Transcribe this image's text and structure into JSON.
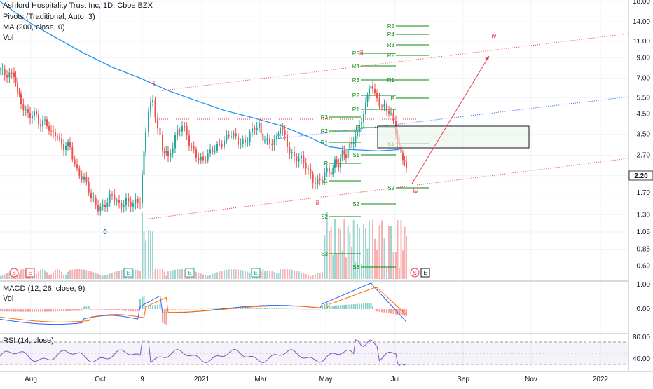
{
  "header": {
    "title": "Ashford Hospitality Trust Inc, 1D, Cboe BZX",
    "indicators": [
      "Pivots (Traditional, Auto, 3)",
      "MA (200, close, 0)",
      "Vol"
    ]
  },
  "macd_label": "MACD (12, 26, close, 9)",
  "macd_vol_label": "Vol",
  "rsi_label": "RSI (14, close)",
  "current_price": "2.20",
  "price_axis": [
    "18.00",
    "14.00",
    "11.00",
    "9.00",
    "7.00",
    "5.50",
    "4.50",
    "3.50",
    "2.70",
    "2.10",
    "1.70",
    "1.30",
    "1.05",
    "0.85",
    "0.69"
  ],
  "macd_axis": [
    "1.00",
    "0.00",
    "-1.00"
  ],
  "rsi_axis": [
    "80.00",
    "40.00"
  ],
  "time_axis": [
    "Aug",
    "Oct",
    "9",
    "2021",
    "Mar",
    "May",
    "Jul",
    "Sep",
    "Nov",
    "2022"
  ],
  "wave_labels": [
    "0",
    "i",
    "ii",
    "iii",
    "iv",
    "iv"
  ],
  "pivot_labels_1": [
    "R5",
    "R4",
    "R3",
    "R2",
    "R1",
    "P",
    "S1",
    "S2",
    "S3"
  ],
  "pivot_labels_2": [
    "R5",
    "R4",
    "R3",
    "R2",
    "R1",
    "P",
    "S1",
    "S2",
    "S3"
  ],
  "pivot_labels_3": [
    "R5",
    "R4",
    "R3",
    "R2",
    "R1",
    "P",
    "S1",
    "S2"
  ],
  "event_markers": [
    "S",
    "E",
    "E",
    "E",
    "E",
    "S",
    "E"
  ],
  "colors": {
    "up": "#26a69a",
    "down": "#ef5350",
    "ma": "#2196f3",
    "pivot": "#0b8a0b",
    "macd": "#2962ff",
    "signal": "#ff6d00",
    "rsi": "#7e57c2",
    "channel": "#f23645"
  },
  "chart_data": [
    {
      "type": "candlestick",
      "title": "Ashford Hospitality Trust Inc, 1D, Cboe BZX",
      "y_scale": "log",
      "y_range": [
        0.62,
        18
      ],
      "series_summary": [
        {
          "date": "Jul 2020",
          "close": 7.5
        },
        {
          "date": "Aug 2020",
          "close": 4.2
        },
        {
          "date": "Sep 2020",
          "close": 2.3
        },
        {
          "date": "Oct 2020",
          "close": 1.4
        },
        {
          "date": "Nov 2020",
          "close": 1.35
        },
        {
          "date": "Nov 9 2020",
          "close": 2.4
        },
        {
          "date": "Dec 2020",
          "close": 3.5
        },
        {
          "date": "Jan 2021",
          "close": 2.8
        },
        {
          "date": "Feb 2021",
          "close": 3.3
        },
        {
          "date": "Mar 2021",
          "close": 3.8
        },
        {
          "date": "Apr 2021",
          "close": 2.6
        },
        {
          "date": "May 2021",
          "close": 2.0
        },
        {
          "date": "Jun 2021",
          "close": 6.0
        },
        {
          "date": "Jul 2021",
          "close": 3.5
        },
        {
          "date": "Jul 2021 (last)",
          "close": 2.2
        }
      ]
    },
    {
      "type": "line",
      "name": "MACD (12, 26, close, 9)",
      "y_range": [
        -1.0,
        1.0
      ]
    },
    {
      "type": "line",
      "name": "RSI (14, close)",
      "y_range": [
        20,
        80
      ]
    }
  ]
}
